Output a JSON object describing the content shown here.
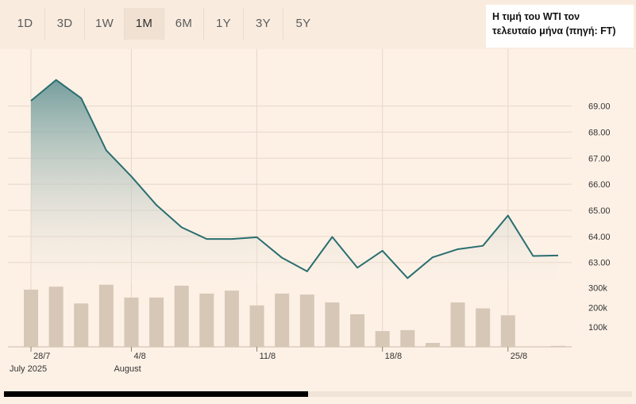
{
  "tabs": [
    {
      "label": "1D",
      "active": false
    },
    {
      "label": "3D",
      "active": false
    },
    {
      "label": "1W",
      "active": false
    },
    {
      "label": "1M",
      "active": true
    },
    {
      "label": "6M",
      "active": false
    },
    {
      "label": "1Y",
      "active": false
    },
    {
      "label": "3Y",
      "active": false
    },
    {
      "label": "5Y",
      "active": false
    }
  ],
  "note": {
    "line1": "Η τιμή του WTI τον",
    "line2": "τελευταίο μήνα (πηγή: FT)"
  },
  "colors": {
    "line": "#2a6e70",
    "area_top": "#6e9a9a",
    "bar": "#d6c7b6",
    "grid": "#e6d7c8",
    "background": "#fdf1e6"
  },
  "chart_data": {
    "type": "line",
    "price": {
      "values": [
        69.2,
        70.0,
        69.3,
        67.3,
        66.3,
        65.2,
        64.35,
        63.9,
        63.9,
        63.97,
        63.18,
        62.66,
        63.98,
        62.8,
        63.45,
        62.4,
        63.2,
        63.51,
        63.64,
        64.8,
        63.25,
        63.27
      ],
      "ylim": [
        62.2,
        70.6
      ],
      "yticks": [
        63,
        64,
        65,
        66,
        67,
        68,
        69
      ],
      "ytick_labels": [
        "63.00",
        "64.00",
        "65.00",
        "66.00",
        "67.00",
        "68.00",
        "69.00"
      ]
    },
    "volume": {
      "values": [
        290000,
        305000,
        220000,
        315000,
        250000,
        250000,
        310000,
        270000,
        285000,
        210000,
        270000,
        265000,
        225000,
        165000,
        80000,
        85000,
        20000,
        225000,
        195000,
        160000,
        0,
        5000
      ],
      "ylim": [
        0,
        350000
      ],
      "yticks": [
        100000,
        200000,
        300000
      ],
      "ytick_labels": [
        "100k",
        "200k",
        "300k"
      ]
    },
    "x_labels": [
      {
        "index": 0,
        "label": "28/7",
        "sublabel": "July 2025"
      },
      {
        "index": 4,
        "label": "4/8",
        "sublabel": "August"
      },
      {
        "index": 9,
        "label": "11/8",
        "sublabel": ""
      },
      {
        "index": 14,
        "label": "18/8",
        "sublabel": ""
      },
      {
        "index": 19,
        "label": "25/8",
        "sublabel": ""
      }
    ]
  }
}
